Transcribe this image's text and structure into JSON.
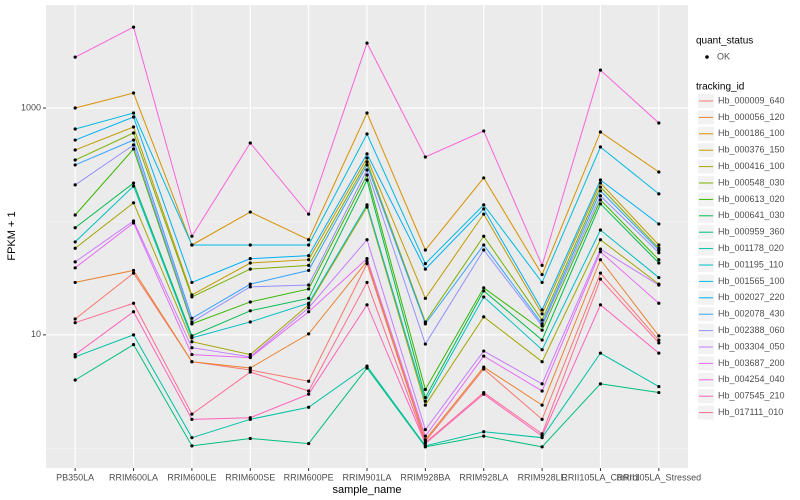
{
  "chart_data": {
    "type": "line",
    "log_scale": true,
    "grid": true,
    "x_label": "sample_name",
    "y_label": "FPKM + 1",
    "categories": [
      "PB350LA",
      "RRIM600LA",
      "RRIM600LE",
      "RRIM600SE",
      "RRIM600PE",
      "RRIM901LA",
      "RRIM928BA",
      "RRIM928LA",
      "RRIM928LE",
      "RRII105LA_Control",
      "RRII105LA_Stressed"
    ],
    "ylim": [
      0.67,
      8100
    ],
    "yticks": [
      10,
      1000
    ],
    "point_legend": {
      "title": "quant_status",
      "entries": [
        "OK"
      ],
      "color": "#000000"
    },
    "legend_title": "tracking_id",
    "legend_position": "right",
    "series": [
      {
        "name": "Hb_000009_640",
        "color": "#F8766D",
        "values": [
          13.8,
          35,
          5.8,
          4.9,
          3.9,
          42.5,
          1.15,
          5.0,
          1.8,
          35,
          9
        ]
      },
      {
        "name": "Hb_000056_120",
        "color": "#EA8331",
        "values": [
          29,
          37,
          5.8,
          5.1,
          10.2,
          44.5,
          1.19,
          5.2,
          2.4,
          46,
          9.8
        ]
      },
      {
        "name": "Hb_000186_100",
        "color": "#D89000",
        "values": [
          1000,
          1356,
          62,
          121,
          69,
          904,
          56,
          242,
          34,
          615,
          273
        ]
      },
      {
        "name": "Hb_000376_150",
        "color": "#C09B00",
        "values": [
          427,
          680,
          22.5,
          43,
          46,
          363,
          21,
          116,
          15.3,
          218,
          62
        ]
      },
      {
        "name": "Hb_000416_100",
        "color": "#A3A500",
        "values": [
          58,
          146,
          8.7,
          6.7,
          18.4,
          134,
          2.4,
          14.4,
          5.8,
          69,
          28
        ]
      },
      {
        "name": "Hb_000548_030",
        "color": "#7CAE00",
        "values": [
          348,
          603,
          21.6,
          38,
          41,
          335,
          13,
          74,
          13.5,
          201,
          58
        ]
      },
      {
        "name": "Hb_000613_020",
        "color": "#39B600",
        "values": [
          114,
          435,
          12.5,
          19.5,
          25.4,
          257,
          3.3,
          26,
          11,
          155,
          46
        ]
      },
      {
        "name": "Hb_000641_030",
        "color": "#00BB4E",
        "values": [
          88,
          218,
          9.8,
          16.3,
          21,
          232,
          2.8,
          24.4,
          9,
          143,
          43
        ]
      },
      {
        "name": "Hb_000959_360",
        "color": "#00BF7D",
        "values": [
          4.0,
          8.2,
          1.05,
          1.22,
          1.1,
          5.1,
          1.03,
          1.28,
          1.03,
          3.7,
          3.1
        ]
      },
      {
        "name": "Hb_001178_020",
        "color": "#00C1A3",
        "values": [
          6.4,
          10,
          1.24,
          1.8,
          2.3,
          5.3,
          1.05,
          1.4,
          1.24,
          6.9,
          3.5
        ]
      },
      {
        "name": "Hb_001195_110",
        "color": "#00BFC4",
        "values": [
          66,
          205,
          9.4,
          13,
          19,
          140,
          2.6,
          21.6,
          7.4,
          84,
          32
        ]
      },
      {
        "name": "Hb_001565_100",
        "color": "#00BAE0",
        "values": [
          653,
          904,
          62,
          62,
          62,
          590,
          42.5,
          140,
          29,
          453,
          175
        ]
      },
      {
        "name": "Hb_002027_220",
        "color": "#00B0F6",
        "values": [
          522,
          833,
          29,
          47,
          50,
          394,
          38,
          129,
          16.6,
          232,
          95
        ]
      },
      {
        "name": "Hb_002078_430",
        "color": "#35A2FF",
        "values": [
          315,
          522,
          14,
          28,
          37,
          315,
          12.5,
          62,
          12.5,
          186,
          56
        ]
      },
      {
        "name": "Hb_002388_060",
        "color": "#9590FF",
        "values": [
          210,
          472,
          13,
          26.5,
          27.5,
          284,
          8.3,
          56,
          12,
          168,
          53
        ]
      },
      {
        "name": "Hb_003304_050",
        "color": "#C77CFF",
        "values": [
          44,
          101,
          7.7,
          6.4,
          17.3,
          69,
          1.46,
          7.2,
          3.7,
          57,
          27.5
        ]
      },
      {
        "name": "Hb_003687_200",
        "color": "#E76BF3",
        "values": [
          39,
          97,
          6.7,
          6.3,
          16,
          47,
          1.28,
          6.5,
          3.2,
          54,
          19
        ]
      },
      {
        "name": "Hb_004254_040",
        "color": "#FA62DB",
        "values": [
          2810,
          5170,
          74,
          492,
          116,
          3740,
          370,
          627,
          41,
          2160,
          738
        ]
      },
      {
        "name": "Hb_007545_210",
        "color": "#FF62BC",
        "values": [
          6.7,
          16,
          1.8,
          1.86,
          3.0,
          18.4,
          1.1,
          3.0,
          1.28,
          18.4,
          6.9
        ]
      },
      {
        "name": "Hb_017111_010",
        "color": "#FF6C91",
        "values": [
          12.8,
          19,
          2.0,
          4.7,
          3.2,
          29,
          1.12,
          3.1,
          1.34,
          31,
          8.5
        ]
      }
    ]
  }
}
